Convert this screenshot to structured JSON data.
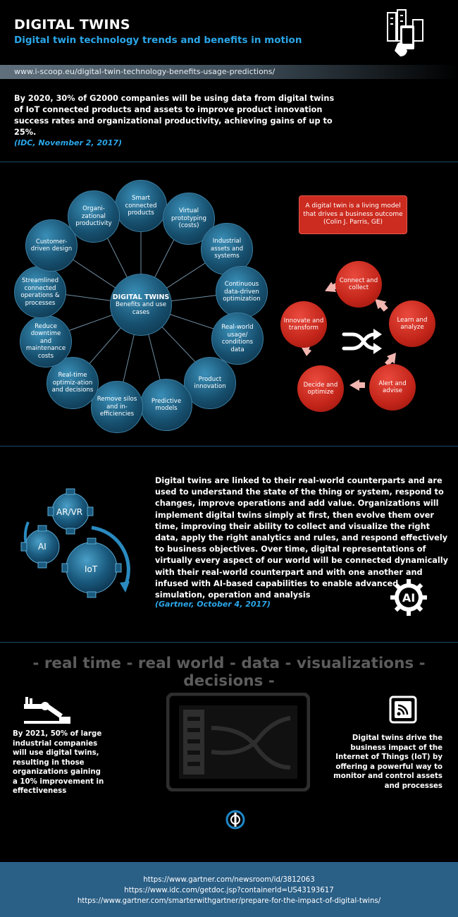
{
  "header": {
    "title": "DIGITAL TWINS",
    "subtitle": "Digital twin technology trends and benefits in motion",
    "icon": "building-smartphone-icon"
  },
  "source_url": "www.i-scoop.eu/digital-twin-technology-benefits-usage-predictions/",
  "idc": {
    "quote": "By 2020, 30% of G2000 companies will be using data from digital twins of IoT connected products and assets to improve product innovation success rates and organizational productivity, achieving gains of up to 25%.",
    "source": "(IDC, November 2, 2017)"
  },
  "wheel": {
    "center_title": "DIGITAL TWINS",
    "center_sub": "Benefits and use cases",
    "nodes": [
      "Smart connected products",
      "Virtual prototyping (costs)",
      "Industrial assets and systems",
      "Continuous data-driven optimization",
      "Real-world usage/ conditions data",
      "Product innovation",
      "Predictive models",
      "Remove silos and in-efficiencies",
      "Real-time optimiz-ation and decisions",
      "Reduce downtime and maintenance costs",
      "Streamlined connected operations & processes",
      "Customer-driven design",
      "Organi-zational productivity"
    ]
  },
  "cycle": {
    "quote": "A digital twin is a living model that drives a business outcome (Colin J. Parris, GE)",
    "steps": [
      "Connect and collect",
      "Learn and analyze",
      "Alert and advise",
      "Decide and optimize",
      "Innovate and transform"
    ],
    "center_icon": "shuffle-icon"
  },
  "gartner": {
    "text": "Digital twins are linked to their real-world counterparts and are used to understand the state of the thing or system, respond to changes, improve operations and add value. Organizations will implement digital twins simply at first, then evolve them over time, improving their ability to collect and visualize the right data, apply the right analytics and rules, and respond effectively to business objectives. Over time, digital representations of virtually every aspect of our world will be connected dynamically with their real-world counterpart and with one another and infused with AI-based capabilities to enable advanced simulation, operation and analysis",
    "source": "(Gartner, October 4, 2017)",
    "gears": [
      "AR/VR",
      "AI",
      "IoT"
    ],
    "badge": "AI"
  },
  "keywords": "- real time - real world - data - visualizations - decisions -",
  "left_stat": "By 2021, 50% of large industrial companies will use digital twins, resulting in those organizations gaining a 10% improvement in effectiveness",
  "right_stat": "Digital twins drive the business impact of the Internet of Things (IoT) by offering a powerful way to monitor and control assets and processes",
  "footer": {
    "links": [
      "https://www.gartner.com/newsroom/id/3812063",
      "https://www.idc.com/getdoc.jsp?containerId=US43193617",
      "https://www.gartner.com/smarterwithgartner/prepare-for-the-impact-of-digital-twins/"
    ]
  },
  "colors": {
    "accent_blue": "#2ba6e8",
    "node_blue": "#17506f",
    "node_red": "#c22419",
    "footer_bg": "#2a5f86"
  }
}
